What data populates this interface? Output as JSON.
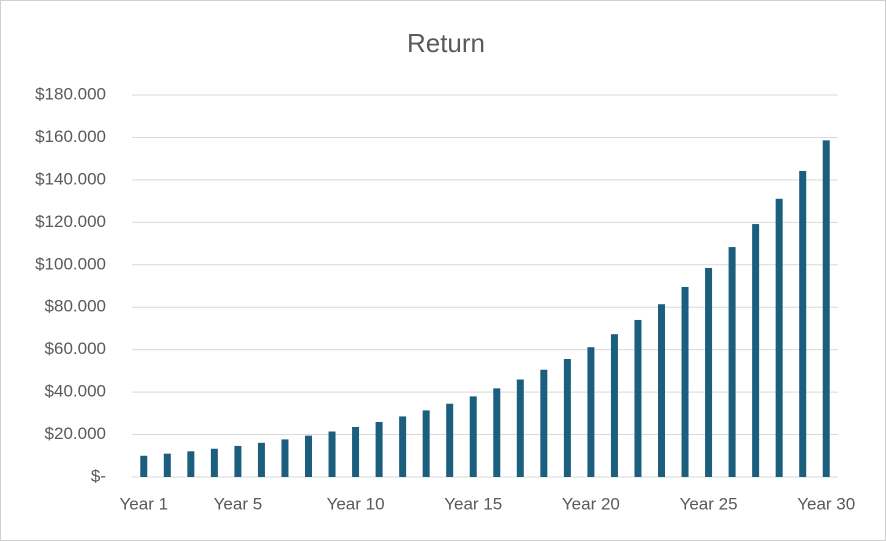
{
  "chart_data": {
    "type": "bar",
    "title": "Return",
    "categories": [
      "Year 1",
      null,
      null,
      null,
      "Year 5",
      null,
      null,
      null,
      null,
      "Year 10",
      null,
      null,
      null,
      null,
      "Year 15",
      null,
      null,
      null,
      null,
      "Year 20",
      null,
      null,
      null,
      null,
      "Year 25",
      null,
      null,
      null,
      null,
      "Year 30"
    ],
    "values": [
      10000,
      11000,
      12100,
      13310,
      14641,
      16105,
      17716,
      19487,
      21436,
      23579,
      25937,
      28531,
      31384,
      34523,
      37975,
      41772,
      45950,
      50545,
      55599,
      61159,
      67275,
      74002,
      81403,
      89543,
      98497,
      108347,
      119182,
      131100,
      144210,
      158631
    ],
    "color": "#1b5e7e",
    "ylim": [
      0,
      180000
    ],
    "yticks": [
      {
        "value": 0,
        "label": "$-"
      },
      {
        "value": 20000,
        "label": "$20.000"
      },
      {
        "value": 40000,
        "label": "$40.000"
      },
      {
        "value": 60000,
        "label": "$60.000"
      },
      {
        "value": 80000,
        "label": "$80.000"
      },
      {
        "value": 100000,
        "label": "$100.000"
      },
      {
        "value": 120000,
        "label": "$120.000"
      },
      {
        "value": 140000,
        "label": "$140.000"
      },
      {
        "value": 160000,
        "label": "$160.000"
      },
      {
        "value": 180000,
        "label": "$180.000"
      }
    ],
    "grid": true
  }
}
